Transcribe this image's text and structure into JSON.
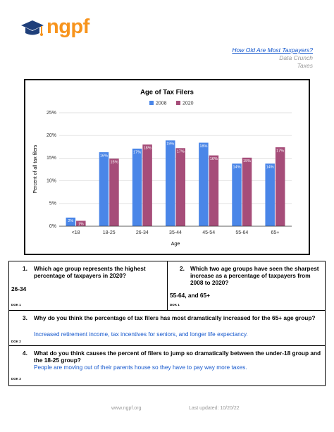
{
  "header": {
    "logo": "ngpf",
    "title": "How Old Are Most Taxpayers?",
    "series": "Data Crunch",
    "topic": "Taxes"
  },
  "chart_data": {
    "type": "bar",
    "title": "Age of Tax Filers",
    "x_label": "Age",
    "y_label": "Percent of all tax filers",
    "categories": [
      "<18",
      "18-25",
      "26-34",
      "35-44",
      "45-54",
      "55-64",
      "65+"
    ],
    "series": [
      {
        "name": "2008",
        "color": "#4a86e8",
        "values": [
          1.9,
          16.3,
          17.1,
          18.9,
          18.4,
          13.8,
          13.8
        ],
        "value_labels": [
          "2%",
          "16%",
          "17%",
          "19%",
          "18%",
          "14%",
          "14%"
        ]
      },
      {
        "name": "2020",
        "color": "#a64d79",
        "values": [
          1.2,
          14.9,
          18.0,
          17.2,
          15.6,
          15.1,
          17.4
        ],
        "value_labels": [
          "1%",
          "15%",
          "18%",
          "17%",
          "16%",
          "15%",
          "17%"
        ]
      }
    ],
    "ylim": [
      0,
      25
    ],
    "yticks": [
      {
        "value": 0,
        "label": "0%"
      },
      {
        "value": 5,
        "label": "5%"
      },
      {
        "value": 10,
        "label": "10%"
      },
      {
        "value": 15,
        "label": "15%"
      },
      {
        "value": 20,
        "label": "20%"
      },
      {
        "value": 25,
        "label": "25%"
      }
    ],
    "grid": true,
    "legend": "top"
  },
  "questions": [
    {
      "number": "1.",
      "question": "Which age group represents the highest percentage of taxpayers in 2020?",
      "answer": "26-34",
      "dok": "DOK 1"
    },
    {
      "number": "2.",
      "question": "Which two age groups have seen the sharpest increase as a percentage of taxpayers from 2008 to 2020?",
      "answer": "55-64, and 65+",
      "dok": "DOK 1"
    },
    {
      "number": "3.",
      "question": "Why do you think the percentage of tax filers has most dramatically increased for the 65+ age group?",
      "answer": "Increased retirement income, tax incentives for seniors, and longer life expectancy.",
      "dok": "DOK 2"
    },
    {
      "number": "4.",
      "question": "What do you think causes the percent of filers to jump so dramatically between the under-18 group and the 18-25 group?",
      "answer": "People are moving out of their parents house so they have to pay way more taxes.",
      "dok": "DOK 3"
    }
  ],
  "footer": {
    "website": "www.ngpf.org",
    "updated": "Last updated: 10/20/22"
  }
}
